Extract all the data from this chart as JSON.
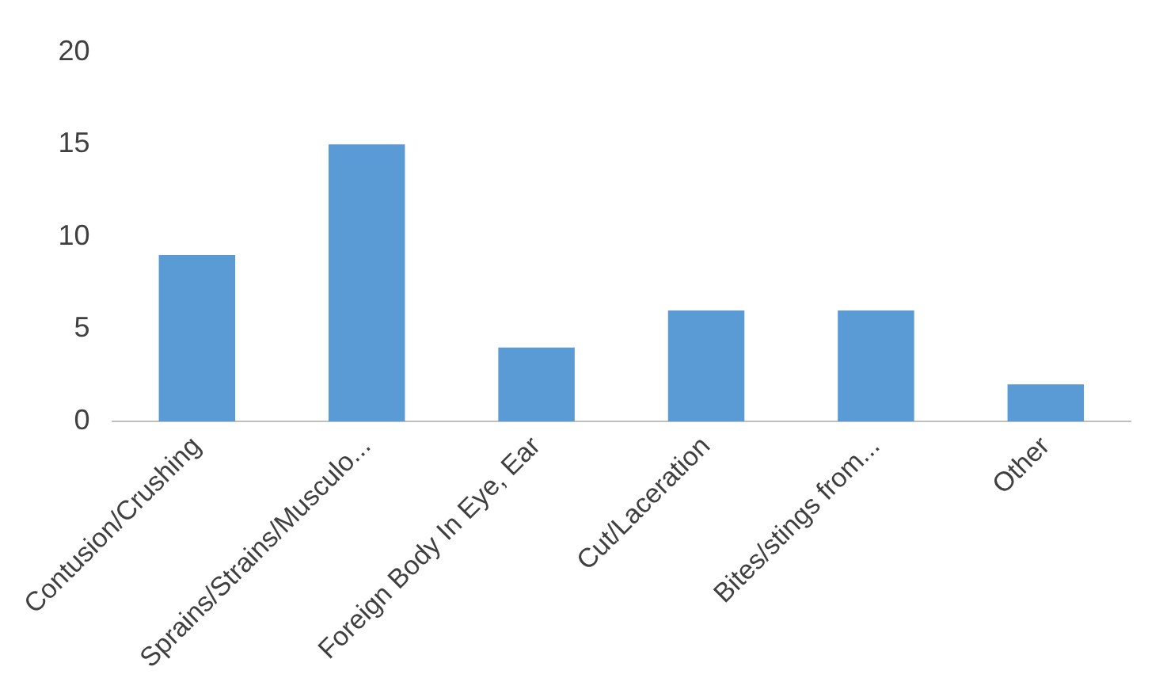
{
  "chart_data": {
    "type": "bar",
    "categories": [
      "Contusion/Crushing",
      "Sprains/Strains/Musculo...",
      "Foreign Body In Eye, Ear",
      "Cut/Laceration",
      "Bites/stings from...",
      "Other"
    ],
    "values": [
      9,
      15,
      4,
      6,
      6,
      2
    ],
    "color": "#5b9bd5",
    "ylim": [
      0,
      20
    ],
    "yticks": [
      0,
      5,
      10,
      15,
      20
    ],
    "grid": false,
    "legend": false
  }
}
